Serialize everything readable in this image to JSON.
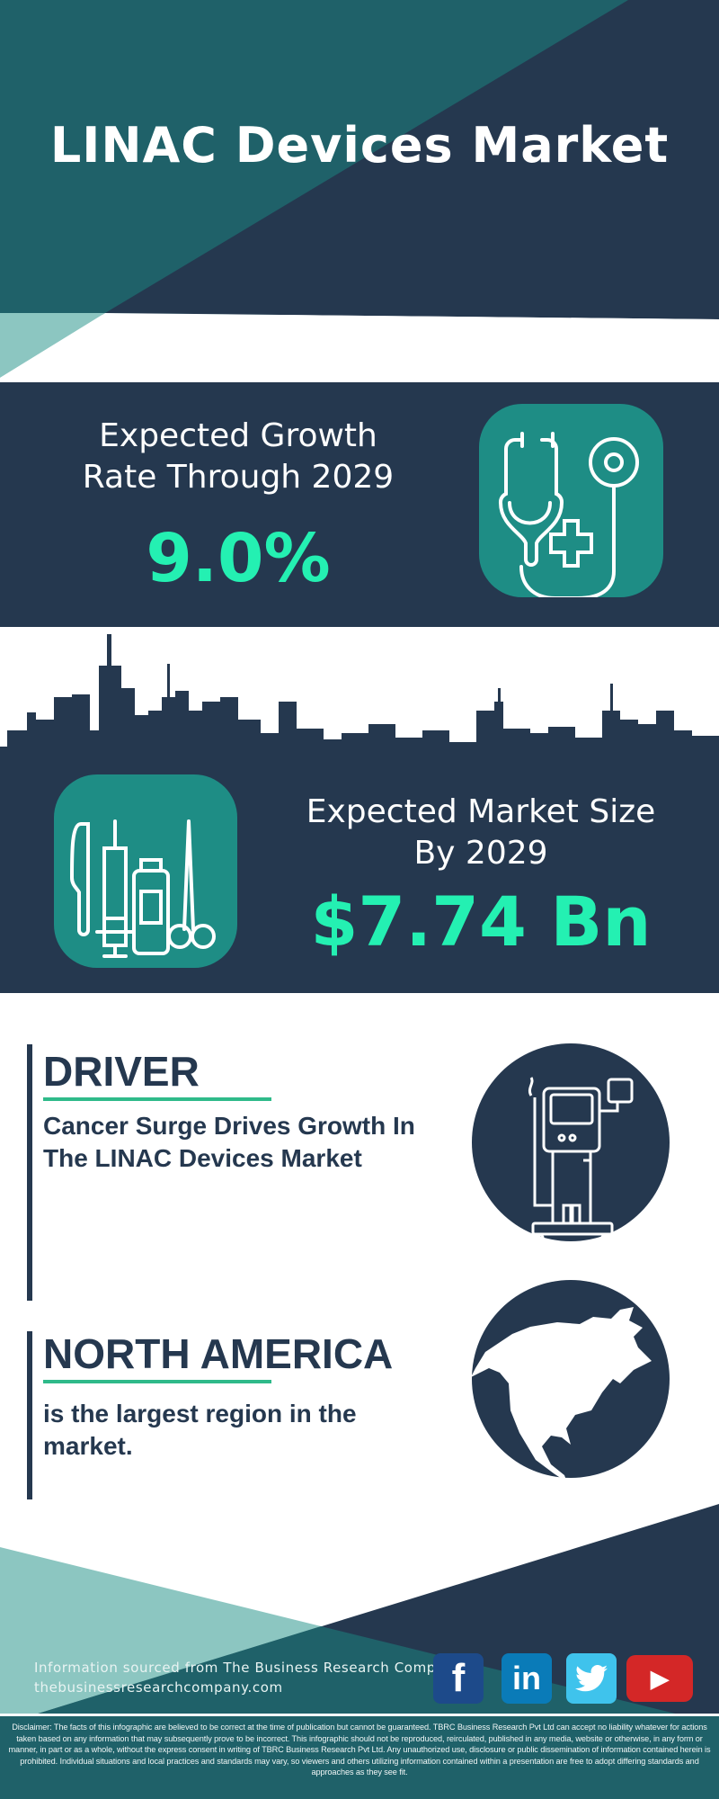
{
  "header": {
    "title": "LINAC Devices Market"
  },
  "growth": {
    "label_line1": "Expected Growth",
    "label_line2": "Rate Through 2029",
    "value": "9.0%",
    "icon": "stethoscope-plus-icon"
  },
  "market_size": {
    "label_line1": "Expected Market Size",
    "label_line2": "By 2029",
    "value": "$7.74 Bn",
    "icon": "medical-tools-icon"
  },
  "driver": {
    "heading": "DRIVER",
    "text": "Cancer Surge Drives Growth In The LINAC Devices Market",
    "icon": "medical-device-icon"
  },
  "region": {
    "heading": "NORTH AMERICA",
    "text": "is the largest region in the market.",
    "icon": "north-america-map-icon"
  },
  "footer": {
    "source": "Information sourced from The Business Research Company",
    "website": "thebusinessresearchcompany.com",
    "social": [
      {
        "name": "facebook",
        "glyph": "f",
        "color": "#1d4a8a"
      },
      {
        "name": "linkedin",
        "glyph": "in",
        "color": "#0a7bb8"
      },
      {
        "name": "twitter",
        "glyph": "twitter-bird",
        "color": "#3fc3ec"
      },
      {
        "name": "youtube",
        "glyph": "▶",
        "color": "#d42727"
      }
    ],
    "disclaimer": "Disclaimer: The facts of this infographic are believed to be correct at the time of publication but cannot be guaranteed. TBRC Business Research Pvt Ltd can accept no liability whatever for actions taken based on any information that may subsequently prove to be incorrect. This infographic should not be reproduced, reirculated, published in any media, website or otherwise, in any form or manner, in part or as a whole, without the express consent in writing of TBRC Business Research Pvt Ltd. Any unauthorized use, disclosure or public dissemination of information contained herein is prohibited. Individual situations and local practices and standards may vary, so viewers and others utilizing information contained within a presentation are free to adopt differing standards and approaches as they see fit."
  },
  "colors": {
    "navy": "#25384f",
    "teal": "#1f6169",
    "light_teal": "#8cc6c1",
    "icon_teal": "#1e8d85",
    "accent_green": "#24f0b2",
    "underline_green": "#2fba8a"
  }
}
